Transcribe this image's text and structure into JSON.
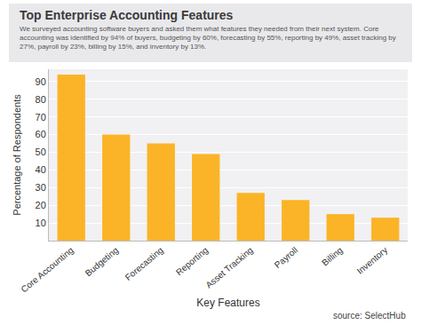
{
  "chart_data": {
    "type": "bar",
    "title": "Top Enterprise Accounting Features",
    "subtitle": "We surveyed accounting software buyers and asked them what features they needed from their next system. Core accounting was identified by 94% of buyers, budgeting by 60%, forecasting by 55%, reporting by 49%, asset tracking by 27%, payroll by 23%, billing by 15%, and inventory by 13%.",
    "x_label": "Key Features",
    "y_label": "Percentage of Respondents",
    "annotations": [
      "source: SelectHub"
    ],
    "categories": [
      "Core Accounting",
      "Budgeting",
      "Forecasting",
      "Reporting",
      "Asset Tracking",
      "Payroll",
      "Billing",
      "Inventory"
    ],
    "values": [
      94,
      60,
      55,
      49,
      27,
      23,
      15,
      13
    ],
    "color": "#fbb427",
    "ylim": [
      0,
      97
    ],
    "yticks": [
      10,
      20,
      30,
      40,
      50,
      60,
      70,
      80,
      90
    ],
    "grid": true
  }
}
